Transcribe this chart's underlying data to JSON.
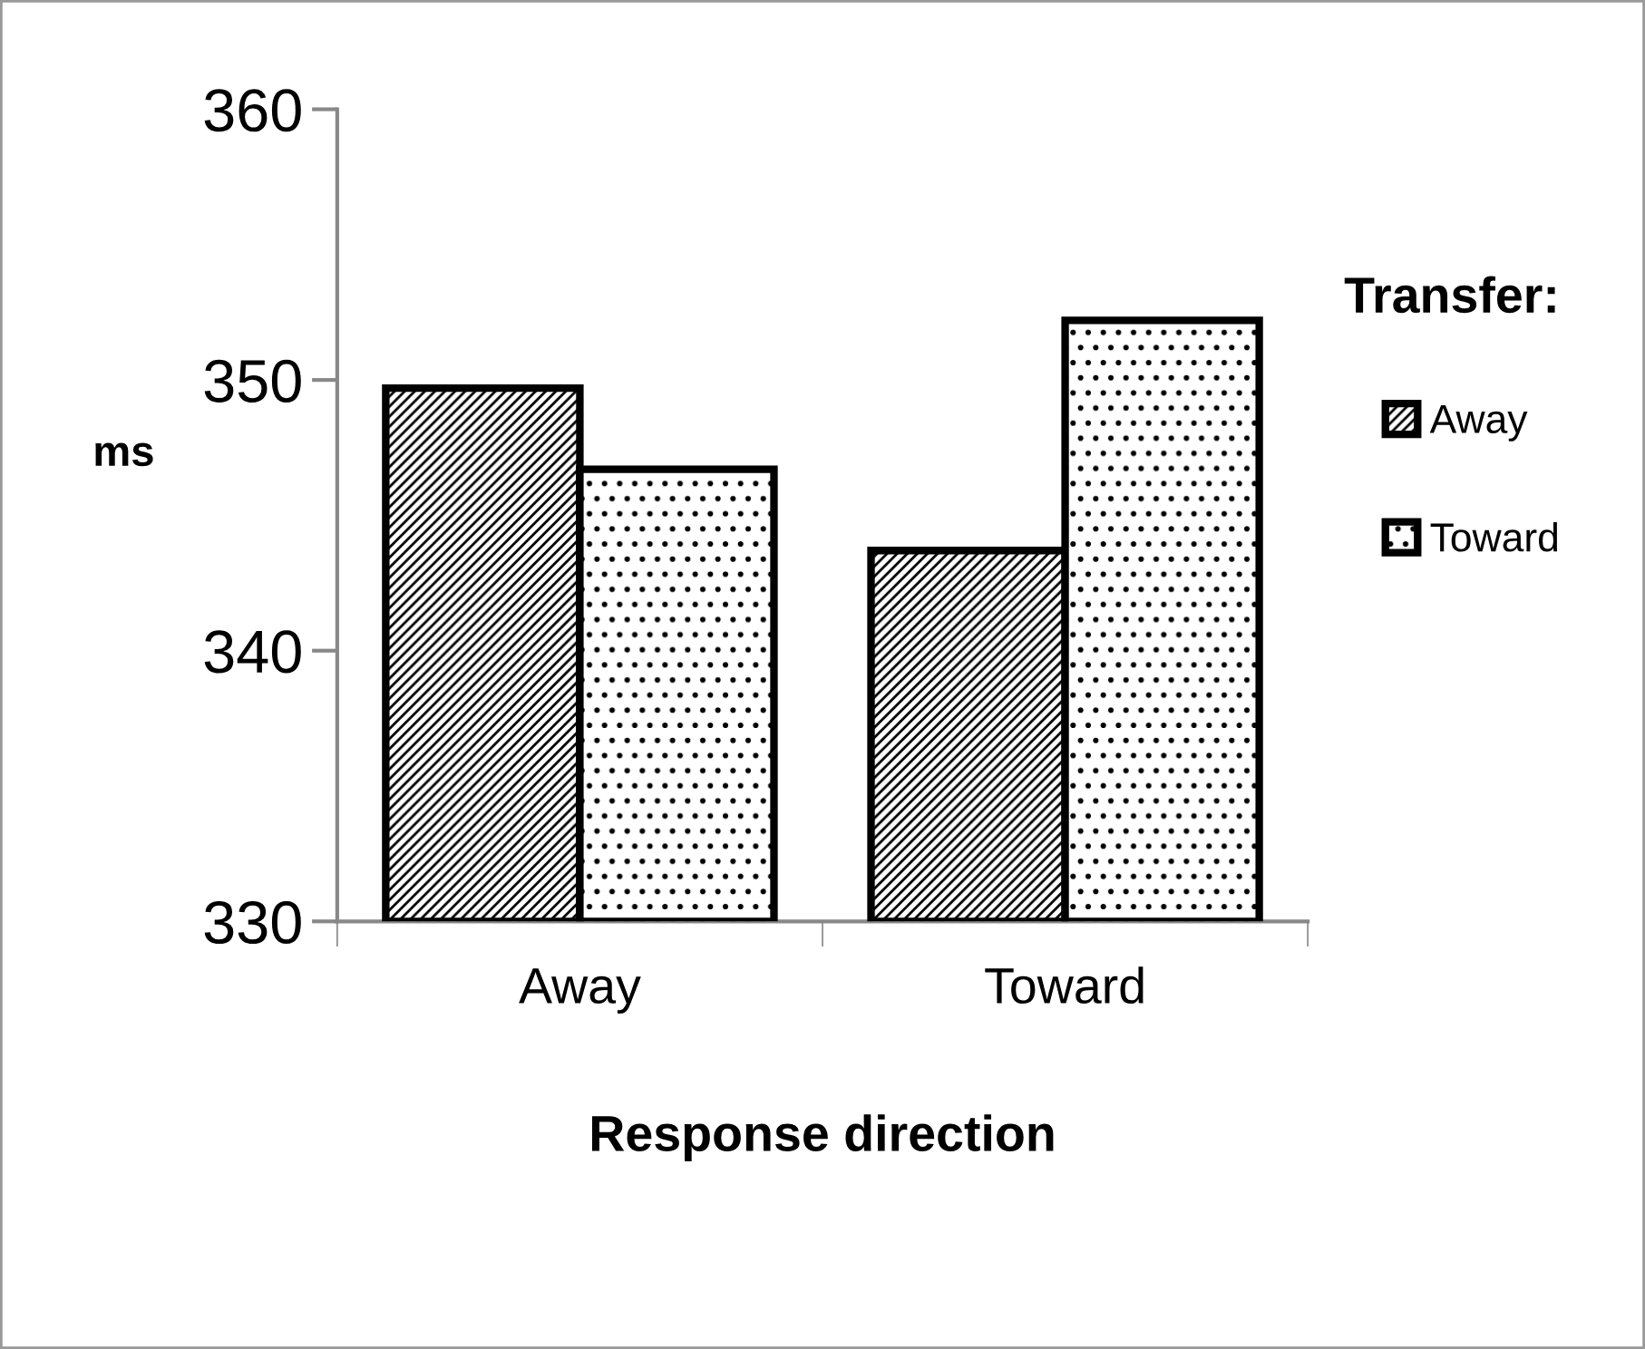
{
  "chart_data": {
    "type": "bar",
    "xlabel": "Response direction",
    "ylabel": "ms",
    "legend_title": "Transfer:",
    "categories": [
      "Away",
      "Toward"
    ],
    "series": [
      {
        "name": "Away",
        "color": "#000000",
        "values": [
          349.7,
          343.7
        ]
      },
      {
        "name": "Toward",
        "color": "#000000",
        "values": [
          346.7,
          352.2
        ]
      }
    ],
    "ylim": [
      330,
      360
    ],
    "yticks": [
      330,
      340,
      350,
      360
    ],
    "grid": false,
    "legend": "right"
  }
}
